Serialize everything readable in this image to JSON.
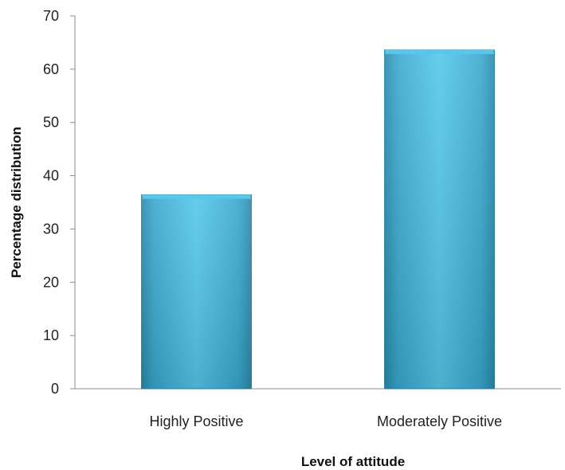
{
  "chart_data": {
    "type": "bar",
    "title": "",
    "xlabel": "Level of attitude",
    "ylabel": "Percentage distribution",
    "categories": [
      "Highly Positive",
      "Moderately Positive"
    ],
    "values": [
      36.4,
      63.6
    ],
    "ylim": [
      0,
      70
    ],
    "yticks": [
      0,
      10,
      20,
      30,
      40,
      50,
      60,
      70
    ],
    "grid": false,
    "legend": "none",
    "bar_color": "#3aa9cf",
    "bar_color_light": "#56c8eb",
    "bar_color_dark": "#2c8aab"
  }
}
